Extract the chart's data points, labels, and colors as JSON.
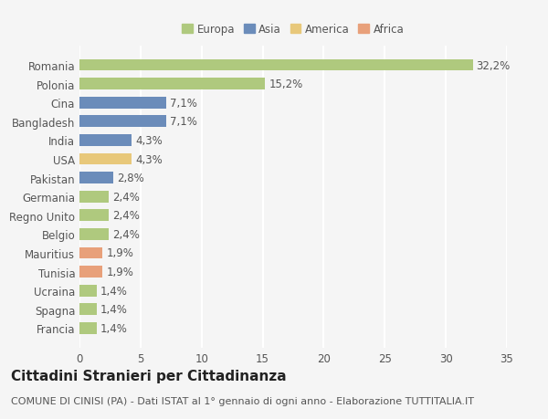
{
  "categories": [
    "Francia",
    "Spagna",
    "Ucraina",
    "Tunisia",
    "Mauritius",
    "Belgio",
    "Regno Unito",
    "Germania",
    "Pakistan",
    "USA",
    "India",
    "Bangladesh",
    "Cina",
    "Polonia",
    "Romania"
  ],
  "values": [
    1.4,
    1.4,
    1.4,
    1.9,
    1.9,
    2.4,
    2.4,
    2.4,
    2.8,
    4.3,
    4.3,
    7.1,
    7.1,
    15.2,
    32.2
  ],
  "labels": [
    "1,4%",
    "1,4%",
    "1,4%",
    "1,9%",
    "1,9%",
    "2,4%",
    "2,4%",
    "2,4%",
    "2,8%",
    "4,3%",
    "4,3%",
    "7,1%",
    "7,1%",
    "15,2%",
    "32,2%"
  ],
  "colors": [
    "#afc97e",
    "#afc97e",
    "#afc97e",
    "#e8a07a",
    "#e8a07a",
    "#afc97e",
    "#afc97e",
    "#afc97e",
    "#6b8cba",
    "#e8c87a",
    "#6b8cba",
    "#6b8cba",
    "#6b8cba",
    "#afc97e",
    "#afc97e"
  ],
  "legend": [
    {
      "label": "Europa",
      "color": "#afc97e"
    },
    {
      "label": "Asia",
      "color": "#6b8cba"
    },
    {
      "label": "America",
      "color": "#e8c87a"
    },
    {
      "label": "Africa",
      "color": "#e8a07a"
    }
  ],
  "xlim": [
    0,
    35
  ],
  "xticks": [
    0,
    5,
    10,
    15,
    20,
    25,
    30,
    35
  ],
  "title": "Cittadini Stranieri per Cittadinanza",
  "subtitle": "COMUNE DI CINISI (PA) - Dati ISTAT al 1° gennaio di ogni anno - Elaborazione TUTTITALIA.IT",
  "bg_color": "#f5f5f5",
  "grid_color": "#ffffff",
  "bar_height": 0.62,
  "title_fontsize": 11,
  "subtitle_fontsize": 8,
  "label_fontsize": 8.5,
  "tick_fontsize": 8.5
}
